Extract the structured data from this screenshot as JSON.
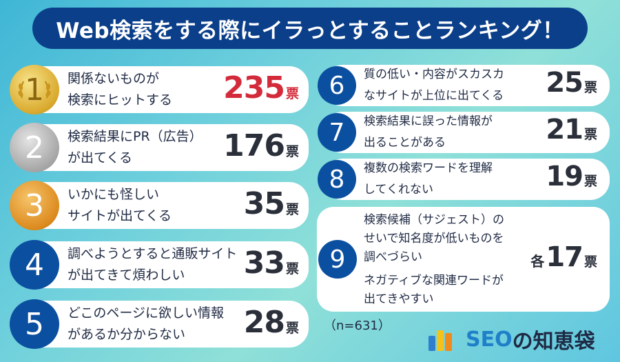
{
  "title": "Web検索をする際にイラっとすることランキング！",
  "vote_unit": "票",
  "items": [
    {
      "rank": "1",
      "label": "関係ないものが\n検索にヒットする",
      "votes": "235"
    },
    {
      "rank": "2",
      "label": "検索結果にPR（広告）\nが出てくる",
      "votes": "176"
    },
    {
      "rank": "3",
      "label": "いかにも怪しい\nサイトが出てくる",
      "votes": "35"
    },
    {
      "rank": "4",
      "label": "調べようとすると通販サイト\nが出てきて煩わしい",
      "votes": "33"
    },
    {
      "rank": "5",
      "label": "どこのページに欲しい情報\nがあるか分からない",
      "votes": "28"
    },
    {
      "rank": "6",
      "label": "質の低い・内容がスカスカ\nなサイトが上位に出てくる",
      "votes": "25"
    },
    {
      "rank": "7",
      "label": "検索結果に誤った情報が\n出ることがある",
      "votes": "21"
    },
    {
      "rank": "8",
      "label": "複数の検索ワードを理解\nしてくれない",
      "votes": "19"
    },
    {
      "rank": "9",
      "label": "検索候補（サジェスト）の\nせいで知名度が低いものを\n調べづらい",
      "label2": "ネガティブな関連ワードが\n出てきやすい",
      "votes_prefix": "各",
      "votes": "17"
    }
  ],
  "note": "（n=631）",
  "logo": {
    "part1": "SEO",
    "part2": "の知恵袋"
  },
  "colors": {
    "title_bg": "#0b3f8a",
    "rank_blue": "#0b4fa0",
    "top_votes": "#d42b3a"
  }
}
